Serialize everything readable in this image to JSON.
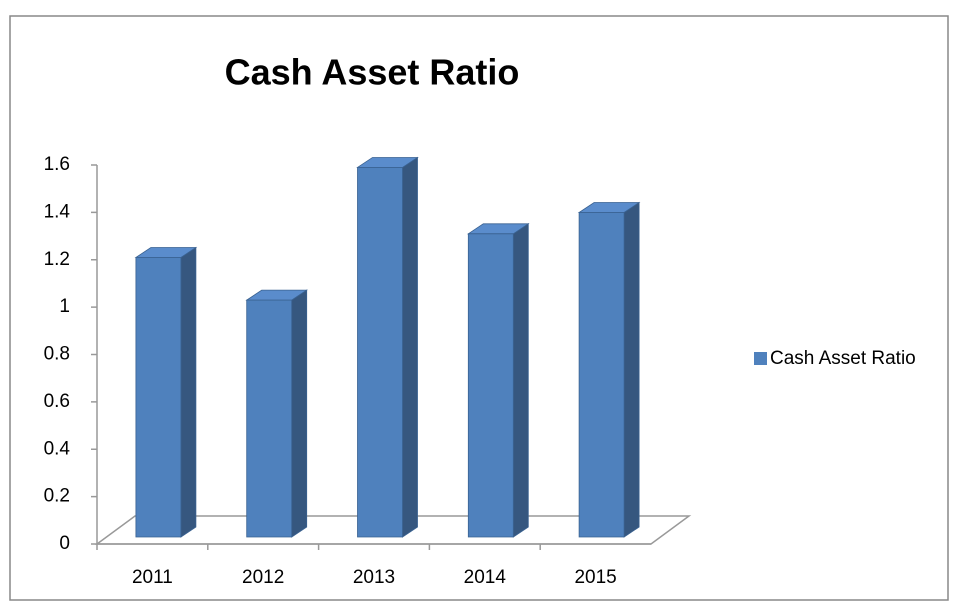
{
  "chart_data": {
    "type": "bar3d",
    "title": "Cash Asset Ratio",
    "categories": [
      "2011",
      "2012",
      "2013",
      "2014",
      "2015"
    ],
    "series": [
      {
        "name": "Cash Asset Ratio",
        "color": "#4f81bd",
        "values": [
          1.18,
          1.0,
          1.56,
          1.28,
          1.37
        ]
      }
    ],
    "ylim": [
      0,
      1.6
    ],
    "yticks": [
      0,
      0.2,
      0.4,
      0.6,
      0.8,
      1,
      1.2,
      1.4,
      1.6
    ],
    "legend": "right"
  }
}
